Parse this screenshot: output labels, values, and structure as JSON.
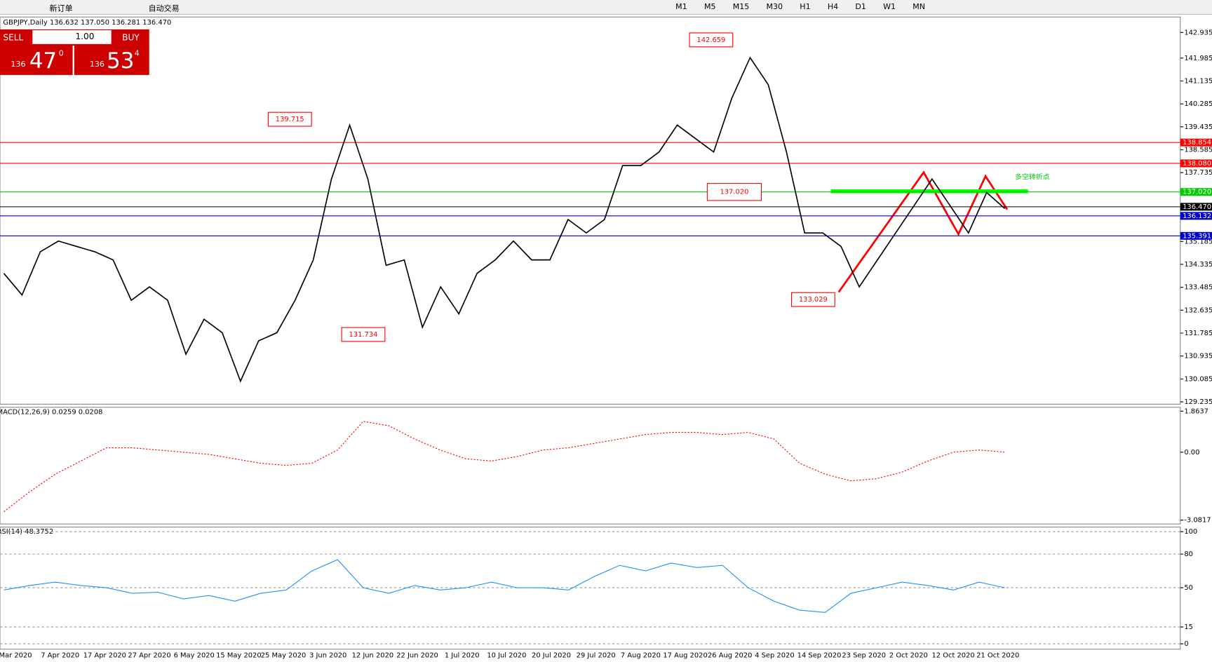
{
  "toolbar": {
    "new_order": "新订单",
    "auto_trading": "自动交易",
    "timeframes": [
      "M1",
      "M5",
      "M15",
      "M30",
      "H1",
      "H4",
      "D1",
      "W1",
      "MN"
    ]
  },
  "trade_panel": {
    "sell": "SELL",
    "buy": "BUY",
    "lot": "1.00",
    "sell_big": "136",
    "sell_digits": "47",
    "sell_frac": "0",
    "buy_big": "136",
    "buy_digits": "53",
    "buy_frac": "4"
  },
  "chart": {
    "symbol_line": "GBPJPY,Daily  136.632 137.050 136.281 136.470",
    "ylim": [
      129.149,
      143.508
    ],
    "yticks": [
      {
        "value": 142.935,
        "label": "142.935"
      },
      {
        "value": 141.985,
        "label": "141.985"
      },
      {
        "value": 141.135,
        "label": "141.135"
      },
      {
        "value": 140.285,
        "label": "140.285"
      },
      {
        "value": 139.435,
        "label": "139.435"
      },
      {
        "value": 138.585,
        "label": "138.585"
      },
      {
        "value": 137.735,
        "label": "137.735"
      },
      {
        "value": 135.185,
        "label": "135.185"
      },
      {
        "value": 134.335,
        "label": "134.335"
      },
      {
        "value": 133.485,
        "label": "133.485"
      },
      {
        "value": 132.635,
        "label": "132.635"
      },
      {
        "value": 131.785,
        "label": "131.785"
      },
      {
        "value": 130.935,
        "label": "130.935"
      },
      {
        "value": 130.085,
        "label": "130.085"
      },
      {
        "value": 129.235,
        "label": "129.235"
      }
    ],
    "levels": [
      {
        "value": 138.854,
        "color": "#ff0000"
      },
      {
        "value": 138.08,
        "label": "138.080",
        "color": "#ff0000"
      },
      {
        "value": 137.02,
        "label": "137.020",
        "color": "#00cc00"
      },
      {
        "value": 136.47,
        "label": "136.470",
        "color": "#000000"
      },
      {
        "value": 136.132,
        "color": "#0000cc"
      },
      {
        "value": 135.391,
        "color": "#0000cc"
      }
    ],
    "annotations": [
      {
        "value": 142.659,
        "label": "142.659"
      },
      {
        "value": 139.715,
        "label": "139.715"
      },
      {
        "value": 131.734,
        "label": "131.734"
      },
      {
        "value": 133.029,
        "label": "133.029"
      },
      {
        "value": 137.02,
        "label": "137.020"
      }
    ],
    "note": "多空转折点",
    "closes": [
      134.0,
      133.2,
      134.8,
      135.2,
      135.0,
      134.8,
      134.5,
      133.0,
      133.5,
      133.0,
      131.0,
      132.3,
      131.8,
      130.0,
      131.5,
      131.8,
      133.0,
      134.5,
      137.5,
      139.5,
      137.5,
      134.3,
      134.5,
      132.0,
      133.5,
      132.5,
      134.0,
      134.5,
      135.2,
      134.5,
      134.5,
      136.0,
      135.5,
      136.0,
      138.0,
      138.0,
      138.5,
      139.5,
      139.0,
      138.5,
      140.5,
      142.0,
      141.0,
      138.5,
      135.5,
      135.5,
      135.0,
      133.5,
      134.5,
      135.5,
      136.5,
      137.5,
      136.5,
      135.5,
      137.0,
      136.4
    ],
    "dates": [
      "Mar 2020",
      "7 Apr 2020",
      "17 Apr 2020",
      "27 Apr 2020",
      "6 May 2020",
      "15 May 2020",
      "25 May 2020",
      "3 Jun 2020",
      "12 Jun 2020",
      "22 Jun 2020",
      "1 Jul 2020",
      "10 Jul 2020",
      "20 Jul 2020",
      "29 Jul 2020",
      "7 Aug 2020",
      "17 Aug 2020",
      "26 Aug 2020",
      "4 Sep 2020",
      "14 Sep 2020",
      "23 Sep 2020",
      "2 Oct 2020",
      "12 Oct 2020",
      "21 Oct 2020"
    ]
  },
  "macd": {
    "label": "MACD(12,26,9) 0.0259 0.0208",
    "ylim": [
      -3.257,
      2.039
    ],
    "yticks": [
      1.8637,
      {
        "value": 0,
        "label": "0.00"
      },
      -3.0817
    ],
    "signal": [
      -2.7,
      -1.8,
      -1.0,
      -0.4,
      0.2,
      0.2,
      0.1,
      0.0,
      -0.1,
      -0.3,
      -0.5,
      -0.6,
      -0.5,
      0.1,
      1.4,
      1.2,
      0.6,
      0.1,
      -0.3,
      -0.4,
      -0.2,
      0.1,
      0.2,
      0.4,
      0.6,
      0.8,
      0.9,
      0.9,
      0.8,
      0.9,
      0.6,
      -0.5,
      -1.0,
      -1.3,
      -1.2,
      -0.9,
      -0.4,
      0.0,
      0.1,
      0.0
    ]
  },
  "rsi": {
    "label": "RSI(14) 48.3752",
    "ylim": [
      -4.8,
      104.1
    ],
    "yticks": [
      100,
      80,
      50,
      15,
      0
    ],
    "values": [
      48,
      52,
      55,
      52,
      50,
      45,
      46,
      40,
      43,
      38,
      45,
      48,
      65,
      75,
      50,
      45,
      52,
      48,
      50,
      55,
      50,
      50,
      48,
      60,
      70,
      65,
      72,
      68,
      70,
      50,
      38,
      30,
      28,
      45,
      50,
      55,
      52,
      48,
      55,
      50
    ]
  }
}
